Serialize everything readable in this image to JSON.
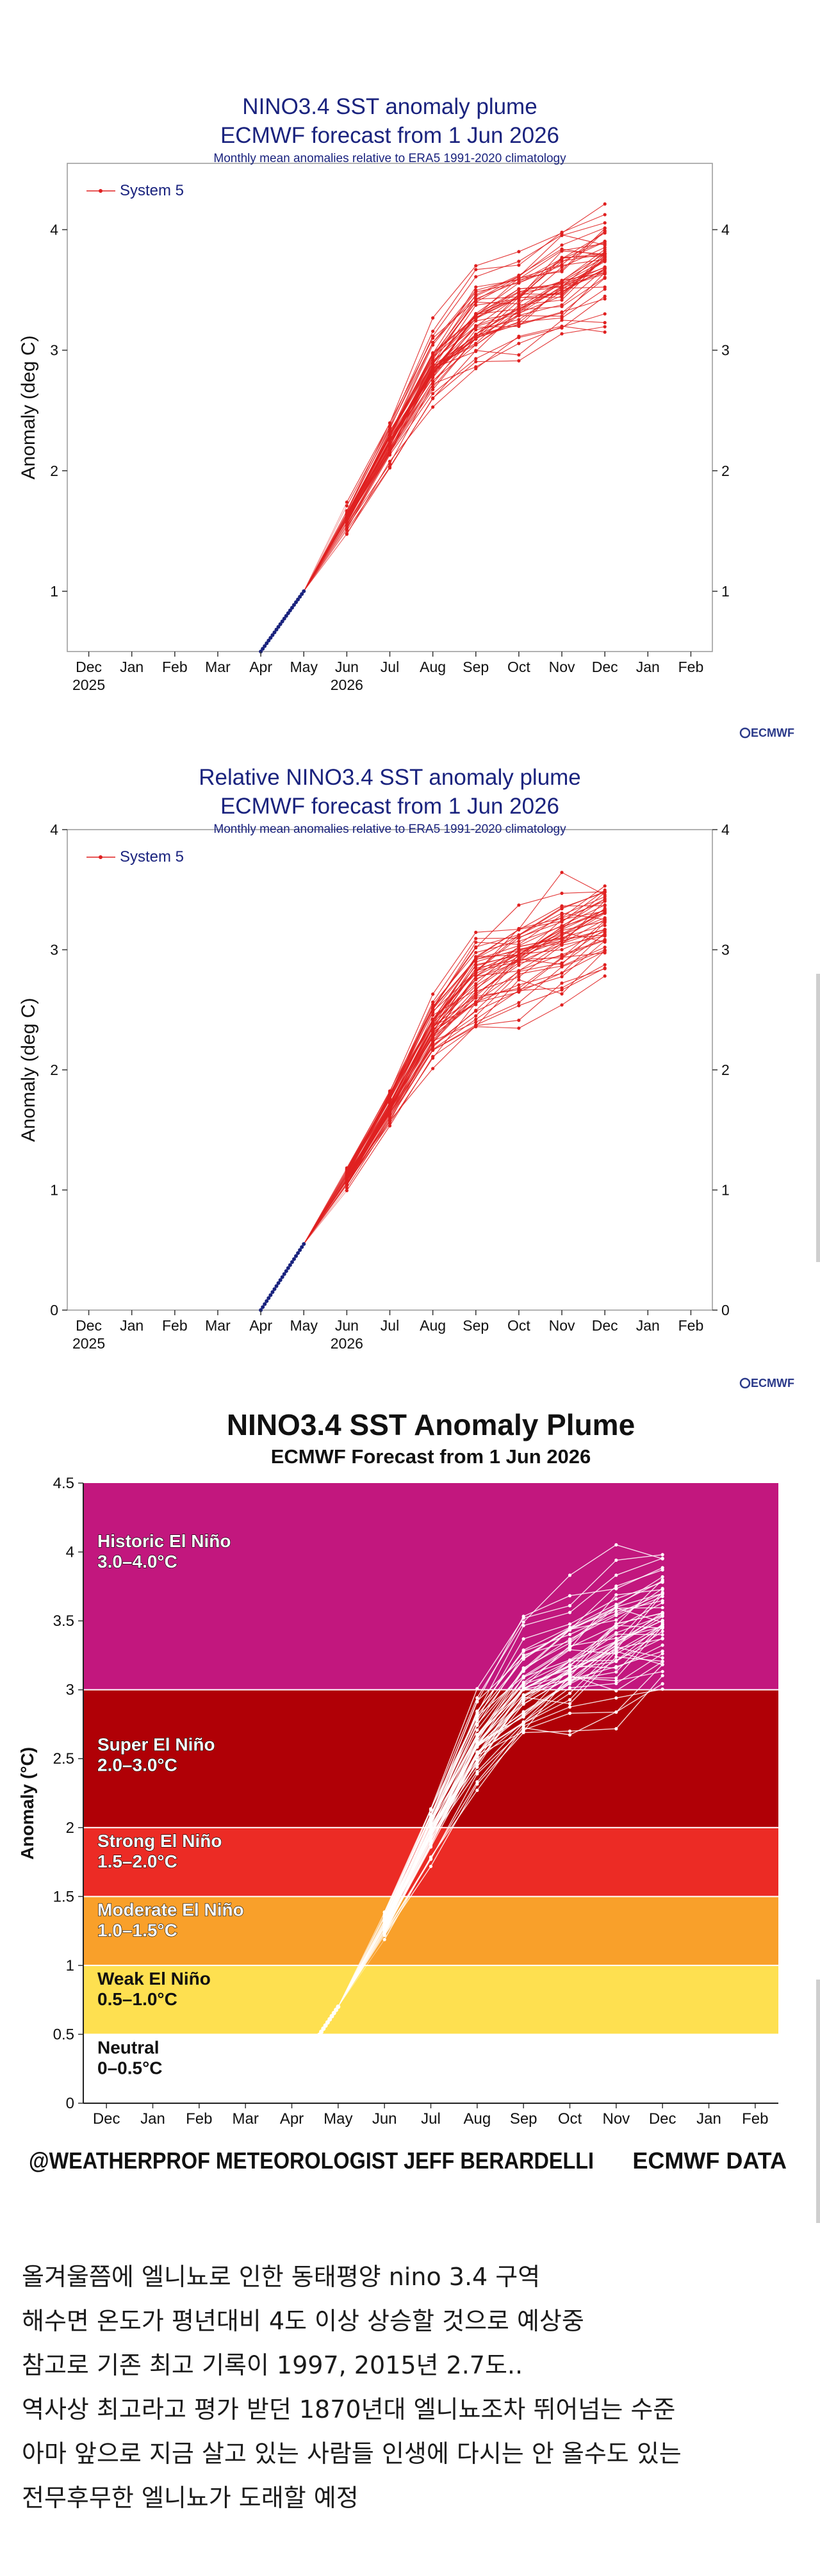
{
  "chart_data": [
    {
      "type": "line",
      "title": "NINO3.4 SST anomaly plume",
      "subtitle": "ECMWF forecast from 1 Jun 2026",
      "note": "Monthly mean anomalies relative to ERA5 1991-2020 climatology",
      "ylabel": "Anomaly (deg C)",
      "xlabel": "",
      "ylim": [
        0.5,
        4.55
      ],
      "yticks": [
        1,
        2,
        3,
        4
      ],
      "x_ticks": [
        "Dec",
        "Jan",
        "Feb",
        "Mar",
        "Apr",
        "May",
        "Jun",
        "Jul",
        "Aug",
        "Sep",
        "Oct",
        "Nov",
        "Dec",
        "Jan",
        "Feb"
      ],
      "year_labels": [
        {
          "label": "2025",
          "at_tick": 0
        },
        {
          "label": "2026",
          "at_tick": 6
        }
      ],
      "legend": {
        "label": "System 5",
        "placement": "top-left"
      },
      "color": "#e02020",
      "observed": {
        "months": [
          "Apr",
          "May",
          "Jun"
        ],
        "values": [
          0.5,
          1.0,
          1.5
        ]
      },
      "ensemble": {
        "members": 51,
        "months": [
          "Jun",
          "Jul",
          "Aug",
          "Sep",
          "Oct",
          "Nov",
          "Dec"
        ],
        "mean": [
          1.6,
          2.25,
          2.85,
          3.2,
          3.4,
          3.58,
          3.75
        ],
        "min": [
          1.45,
          1.95,
          2.5,
          2.7,
          2.85,
          2.85,
          2.95
        ],
        "max": [
          1.75,
          2.5,
          3.4,
          3.95,
          4.05,
          4.25,
          4.32
        ]
      },
      "logo": "ECMWF"
    },
    {
      "type": "line",
      "title": "Relative NINO3.4 SST anomaly plume",
      "subtitle": "ECMWF forecast from 1 Jun 2026",
      "note": "Monthly mean anomalies relative to ERA5 1991-2020 climatology",
      "ylabel": "Anomaly (deg C)",
      "xlabel": "",
      "ylim": [
        0,
        4
      ],
      "yticks": [
        0,
        1,
        2,
        3,
        4
      ],
      "x_ticks": [
        "Dec",
        "Jan",
        "Feb",
        "Mar",
        "Apr",
        "May",
        "Jun",
        "Jul",
        "Aug",
        "Sep",
        "Oct",
        "Nov",
        "Dec",
        "Jan",
        "Feb"
      ],
      "year_labels": [
        {
          "label": "2025",
          "at_tick": 0
        },
        {
          "label": "2026",
          "at_tick": 6
        }
      ],
      "legend": {
        "label": "System 5",
        "placement": "top-left"
      },
      "color": "#e02020",
      "observed": {
        "months": [
          "Apr",
          "May",
          "Jun"
        ],
        "values": [
          0.0,
          0.55,
          1.1
        ]
      },
      "ensemble": {
        "members": 51,
        "months": [
          "Jun",
          "Jul",
          "Aug",
          "Sep",
          "Oct",
          "Nov",
          "Dec"
        ],
        "mean": [
          1.1,
          1.7,
          2.35,
          2.75,
          2.95,
          3.1,
          3.25
        ],
        "min": [
          0.95,
          1.4,
          1.85,
          1.95,
          2.1,
          2.15,
          2.35
        ],
        "max": [
          1.25,
          1.95,
          2.75,
          3.35,
          3.5,
          3.78,
          3.78
        ]
      },
      "logo": "ECMWF"
    },
    {
      "type": "line",
      "title": "NINO3.4 SST Anomaly Plume",
      "subtitle": "ECMWF Forecast from 1 Jun 2026",
      "ylabel": "Anomaly (°C)",
      "xlabel": "",
      "ylim": [
        0,
        4.5
      ],
      "yticks": [
        0,
        0.5,
        1,
        1.5,
        2,
        2.5,
        3,
        3.5,
        4,
        4.5
      ],
      "x_ticks": [
        "Dec",
        "Jan",
        "Feb",
        "Mar",
        "Apr",
        "May",
        "Jun",
        "Jul",
        "Aug",
        "Sep",
        "Oct",
        "Nov",
        "Dec",
        "Jan",
        "Feb"
      ],
      "bands": [
        {
          "label": "Neutral",
          "range_label": "0–0.5°C",
          "from": 0,
          "to": 0.5,
          "color": "#ffffff",
          "text_color": "#111111"
        },
        {
          "label": "Weak El Niño",
          "range_label": "0.5–1.0°C",
          "from": 0.5,
          "to": 1.0,
          "color": "#fee050",
          "text_color": "#111111"
        },
        {
          "label": "Moderate El Niño",
          "range_label": "1.0–1.5°C",
          "from": 1.0,
          "to": 1.5,
          "color": "#f9a02a",
          "text_color": "#ffffff"
        },
        {
          "label": "Strong El Niño",
          "range_label": "1.5–2.0°C",
          "from": 1.5,
          "to": 2.0,
          "color": "#ec2b25",
          "text_color": "#ffffff"
        },
        {
          "label": "Super El Niño",
          "range_label": "2.0–3.0°C",
          "from": 2.0,
          "to": 3.0,
          "color": "#b00006",
          "text_color": "#ffffff"
        },
        {
          "label": "Historic El Niño",
          "range_label": "3.0–4.0°C",
          "from": 3.0,
          "to": 4.5,
          "color": "#c2177e",
          "text_color": "#ffffff"
        }
      ],
      "color": "#ffffff",
      "observed": {
        "months": [
          "Apr",
          "May",
          "Jun"
        ],
        "values": [
          0.2,
          0.7,
          1.2
        ]
      },
      "ensemble": {
        "members": 51,
        "months": [
          "Jun",
          "Jul",
          "Aug",
          "Sep",
          "Oct",
          "Nov",
          "Dec"
        ],
        "mean": [
          1.3,
          2.0,
          2.6,
          3.0,
          3.2,
          3.38,
          3.55
        ],
        "min": [
          1.15,
          1.65,
          2.25,
          2.55,
          2.65,
          2.65,
          2.75
        ],
        "max": [
          1.45,
          2.25,
          3.3,
          3.95,
          4.05,
          4.3,
          4.35
        ]
      },
      "footer_left": "@WEATHERPROF METEOROLOGIST JEFF BERARDELLI",
      "footer_right": "ECMWF DATA"
    }
  ],
  "post": {
    "lines": [
      "올겨울쯤에 엘니뇨로 인한 동태평양 nino 3.4 구역",
      "해수면 온도가 평년대비 4도 이상 상승할 것으로 예상중",
      "참고로 기존 최고 기록이 1997, 2015년 2.7도..",
      "역사상 최고라고 평가 받던 1870년대 엘니뇨조차 뛰어넘는 수준",
      "아마 앞으로 지금 살고 있는 사람들 인생에 다시는 안 올수도 있는",
      "전무후무한 엘니뇨가 도래할 예정"
    ]
  }
}
